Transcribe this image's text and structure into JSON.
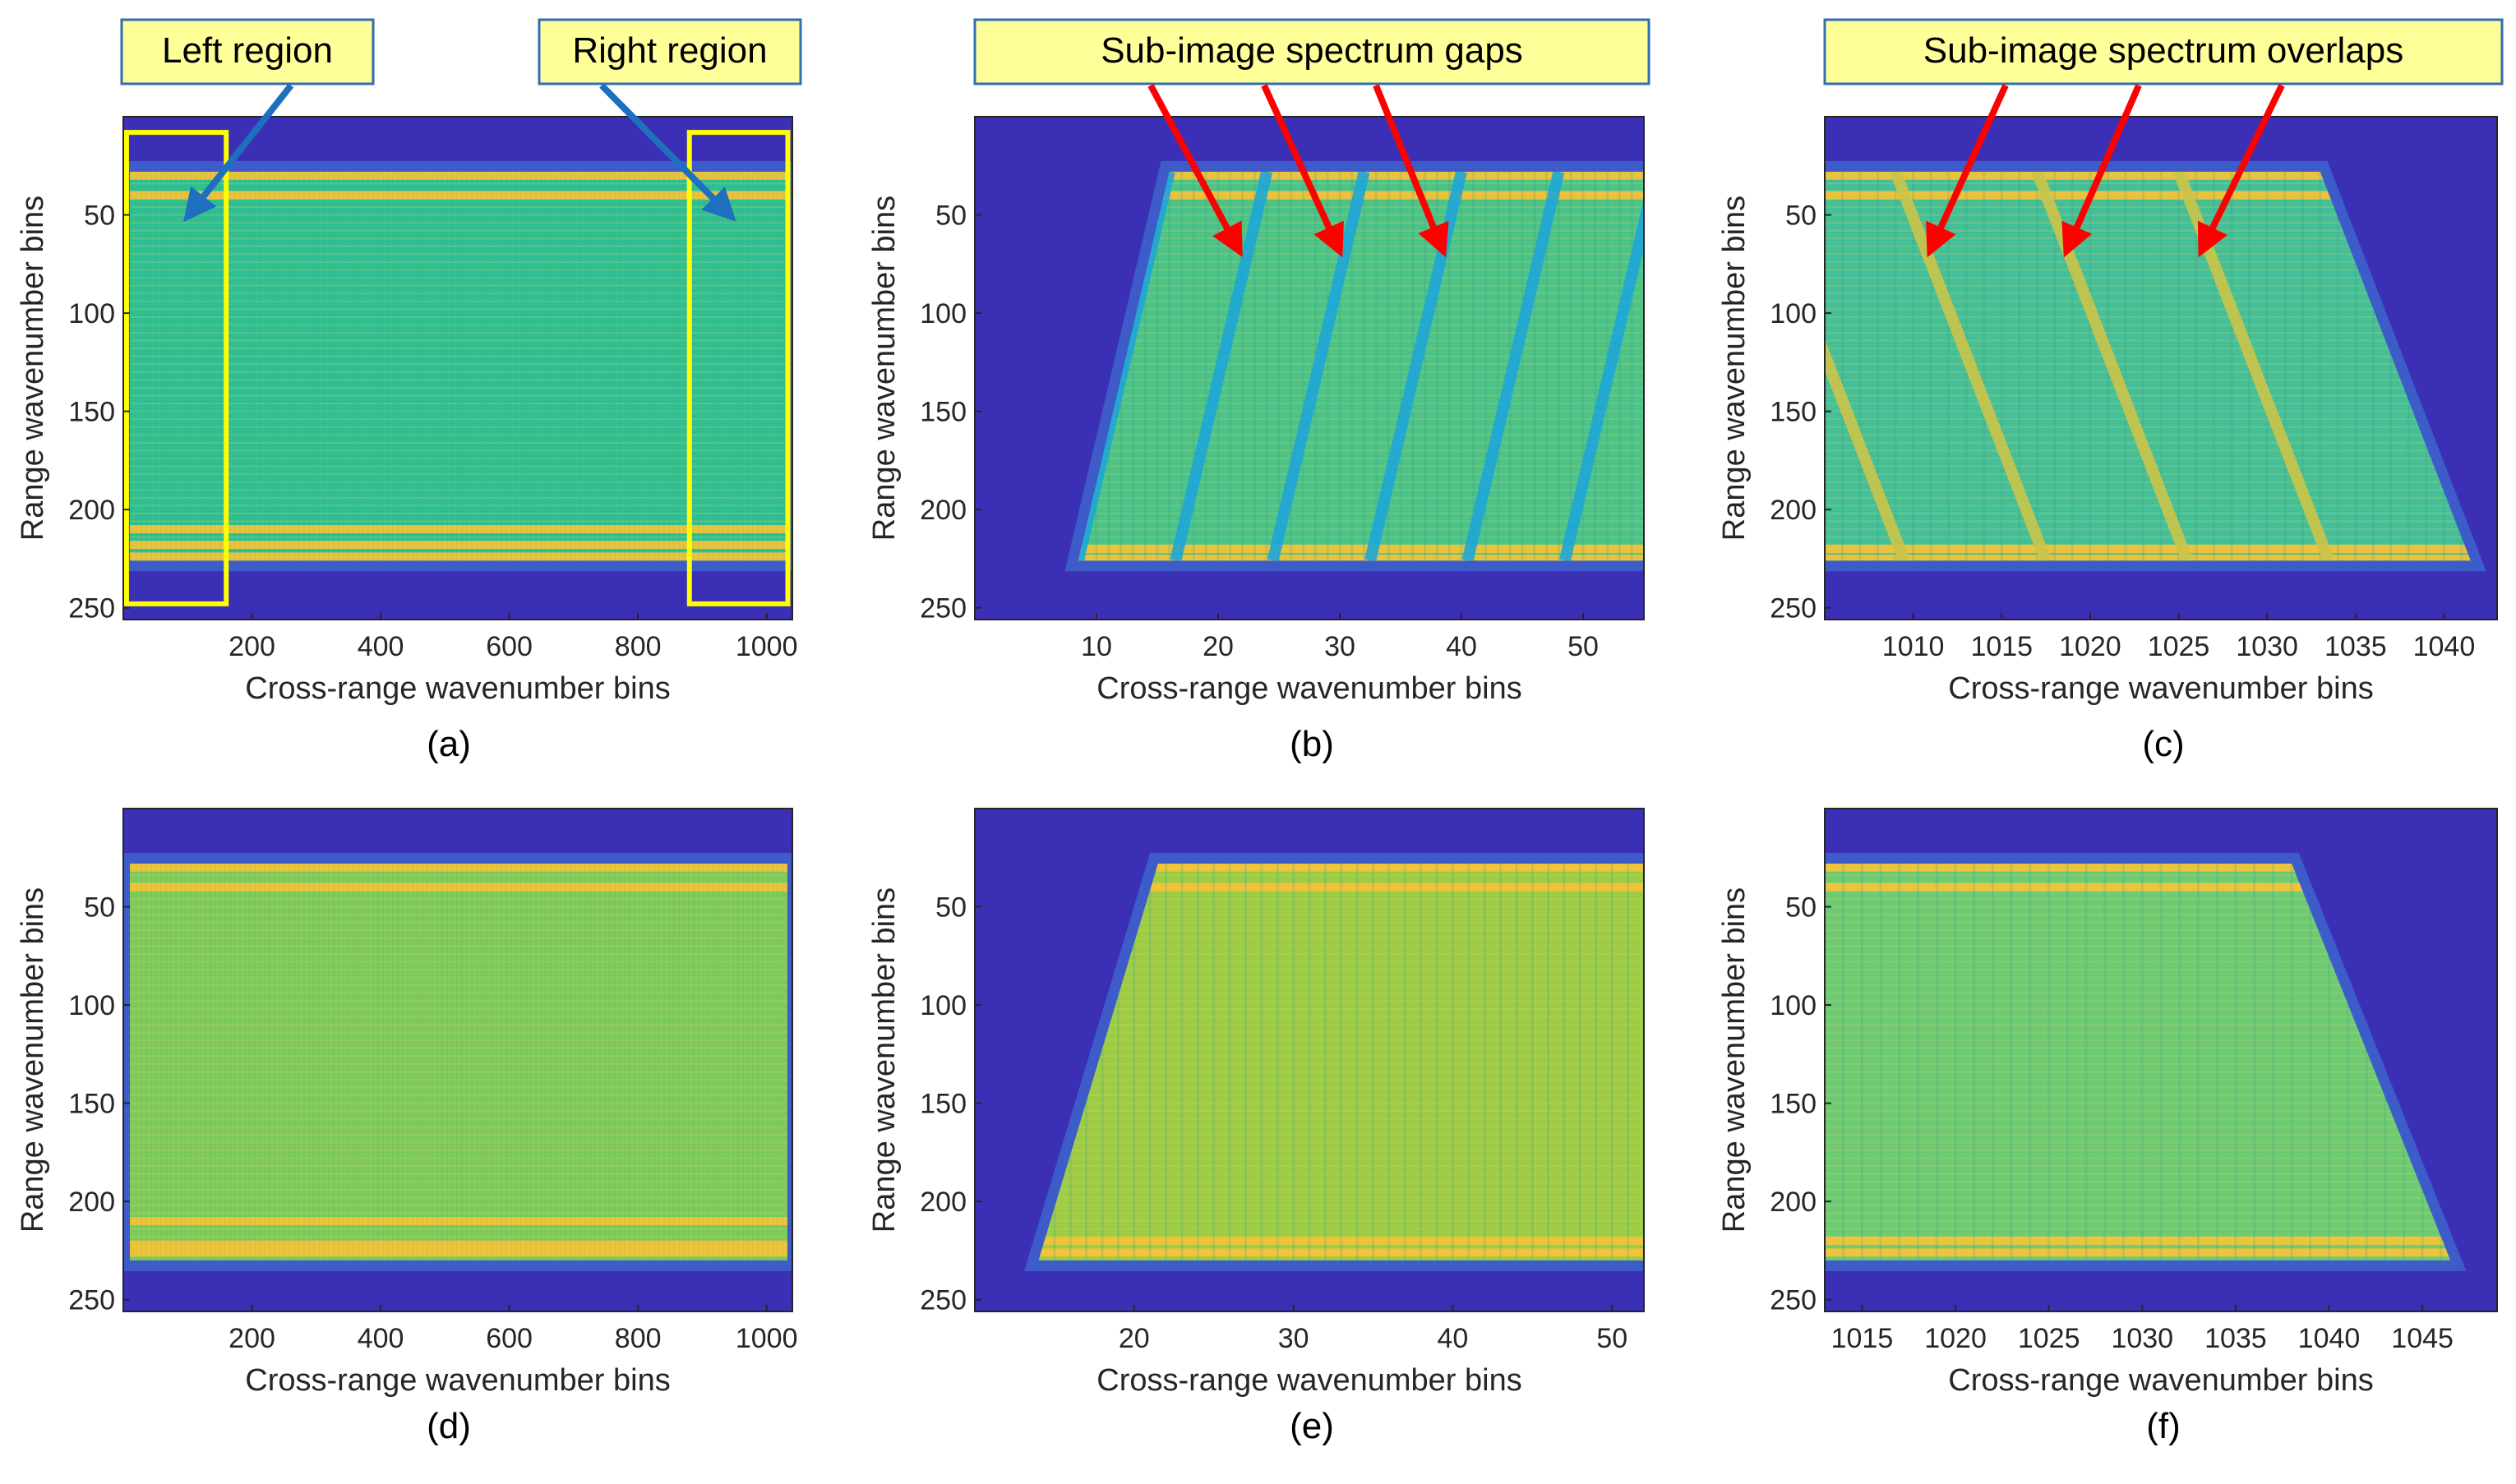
{
  "colors": {
    "background_low": "#3a2fb5",
    "band_high": "#f2c33a",
    "mid": "#44c08d",
    "gap": "#1fa7d8",
    "overlap": "#cbc54a",
    "callout_fill": "#ffff99",
    "callout_border": "#2f6db5",
    "region_box": "#ffff00",
    "arrow_blue": "#1f6fc0",
    "arrow_red": "#ff0000"
  },
  "annotations": {
    "left_region": "Left region",
    "right_region": "Right region",
    "gaps": "Sub-image spectrum gaps",
    "overlaps": "Sub-image spectrum overlaps"
  },
  "chart_data": [
    {
      "id": "a",
      "caption": "(a)",
      "type": "heatmap",
      "title": "",
      "xlabel": "Cross-range wavenumber bins",
      "ylabel": "Range wavenumber bins",
      "xlim": [
        0,
        1040
      ],
      "ylim": [
        0,
        256
      ],
      "y_reversed": true,
      "xticks": [
        "200",
        "400",
        "600",
        "800",
        "1000"
      ],
      "xtick_values": [
        200,
        400,
        600,
        800,
        1000
      ],
      "yticks": [
        "50",
        "100",
        "150",
        "200",
        "250"
      ],
      "ytick_values": [
        50,
        100,
        150,
        200,
        250
      ],
      "band_rows": [
        28,
        226
      ],
      "bright_rows": [
        30,
        40,
        210,
        218,
        224
      ],
      "region_boxes": [
        {
          "x": [
            5,
            160
          ],
          "y": [
            8,
            248
          ]
        },
        {
          "x": [
            880,
            1033
          ],
          "y": [
            8,
            248
          ]
        }
      ],
      "shape": "rectangle",
      "body_color": "#2fbf92"
    },
    {
      "id": "b",
      "caption": "(b)",
      "type": "heatmap",
      "xlabel": "Cross-range wavenumber bins",
      "ylabel": "Range wavenumber bins",
      "xlim": [
        0,
        55
      ],
      "ylim": [
        0,
        256
      ],
      "y_reversed": true,
      "xticks": [
        "10",
        "20",
        "30",
        "40",
        "50"
      ],
      "xtick_values": [
        10,
        20,
        30,
        40,
        50
      ],
      "yticks": [
        "50",
        "100",
        "150",
        "200",
        "250"
      ],
      "ytick_values": [
        50,
        100,
        150,
        200,
        250
      ],
      "band_rows": [
        28,
        226
      ],
      "bright_rows": [
        30,
        40,
        220,
        225
      ],
      "edge_left": {
        "top": 16,
        "bottom": 8.5
      },
      "stripes": [
        {
          "top": 16,
          "bottom": 8.5
        },
        {
          "top": 24,
          "bottom": 16.5
        },
        {
          "top": 32,
          "bottom": 24.5
        },
        {
          "top": 40,
          "bottom": 32.5
        },
        {
          "top": 48,
          "bottom": 40.5
        },
        {
          "top": 56,
          "bottom": 48.5
        }
      ],
      "shape": "left-ramp",
      "body_color": "#4cc387"
    },
    {
      "id": "c",
      "caption": "(c)",
      "type": "heatmap",
      "xlabel": "Cross-range wavenumber bins",
      "ylabel": "Range wavenumber bins",
      "xlim": [
        1005,
        1043
      ],
      "ylim": [
        0,
        256
      ],
      "y_reversed": true,
      "xticks": [
        "1010",
        "1015",
        "1020",
        "1025",
        "1030",
        "1035",
        "1040"
      ],
      "xtick_values": [
        1010,
        1015,
        1020,
        1025,
        1030,
        1035,
        1040
      ],
      "yticks": [
        "50",
        "100",
        "150",
        "200",
        "250"
      ],
      "ytick_values": [
        50,
        100,
        150,
        200,
        250
      ],
      "band_rows": [
        28,
        226
      ],
      "bright_rows": [
        30,
        40,
        220,
        225
      ],
      "edge_right": {
        "top": 1033,
        "bottom": 1041.5
      },
      "stripes": [
        {
          "top": 1001,
          "bottom": 1009.5
        },
        {
          "top": 1009,
          "bottom": 1017.5
        },
        {
          "top": 1017,
          "bottom": 1025.5
        },
        {
          "top": 1025,
          "bottom": 1033.5
        }
      ],
      "shape": "right-ramp",
      "body_color": "#44bf97"
    },
    {
      "id": "d",
      "caption": "(d)",
      "type": "heatmap",
      "xlabel": "Cross-range wavenumber bins",
      "ylabel": "Range wavenumber bins",
      "xlim": [
        0,
        1040
      ],
      "ylim": [
        0,
        256
      ],
      "y_reversed": true,
      "xticks": [
        "200",
        "400",
        "600",
        "800",
        "1000"
      ],
      "xtick_values": [
        200,
        400,
        600,
        800,
        1000
      ],
      "yticks": [
        "50",
        "100",
        "150",
        "200",
        "250"
      ],
      "ytick_values": [
        50,
        100,
        150,
        200,
        250
      ],
      "band_rows": [
        28,
        230
      ],
      "bright_rows": [
        30,
        40,
        210,
        222,
        226
      ],
      "shape": "rectangle",
      "body_color": "#7fcb5a"
    },
    {
      "id": "e",
      "caption": "(e)",
      "type": "heatmap",
      "xlabel": "Cross-range wavenumber bins",
      "ylabel": "Range wavenumber bins",
      "xlim": [
        10,
        52
      ],
      "ylim": [
        0,
        256
      ],
      "y_reversed": true,
      "xticks": [
        "20",
        "30",
        "40",
        "50"
      ],
      "xtick_values": [
        20,
        30,
        40,
        50
      ],
      "yticks": [
        "50",
        "100",
        "150",
        "200",
        "250"
      ],
      "ytick_values": [
        50,
        100,
        150,
        200,
        250
      ],
      "band_rows": [
        28,
        230
      ],
      "bright_rows": [
        30,
        40,
        220,
        226
      ],
      "edge_left": {
        "top": 21.5,
        "bottom": 14
      },
      "shape": "left-ramp",
      "body_color": "#9dcc45"
    },
    {
      "id": "f",
      "caption": "(f)",
      "type": "heatmap",
      "xlabel": "Cross-range wavenumber bins",
      "ylabel": "Range wavenumber bins",
      "xlim": [
        1013,
        1049
      ],
      "ylim": [
        0,
        256
      ],
      "y_reversed": true,
      "xticks": [
        "1015",
        "1020",
        "1025",
        "1030",
        "1035",
        "1040",
        "1045"
      ],
      "xtick_values": [
        1015,
        1020,
        1025,
        1030,
        1035,
        1040,
        1045
      ],
      "yticks": [
        "50",
        "100",
        "150",
        "200",
        "250"
      ],
      "ytick_values": [
        50,
        100,
        150,
        200,
        250
      ],
      "band_rows": [
        28,
        230
      ],
      "bright_rows": [
        30,
        40,
        220,
        226
      ],
      "edge_right": {
        "top": 1038,
        "bottom": 1046.5
      },
      "shape": "right-ramp",
      "body_color": "#6ecb73"
    }
  ]
}
